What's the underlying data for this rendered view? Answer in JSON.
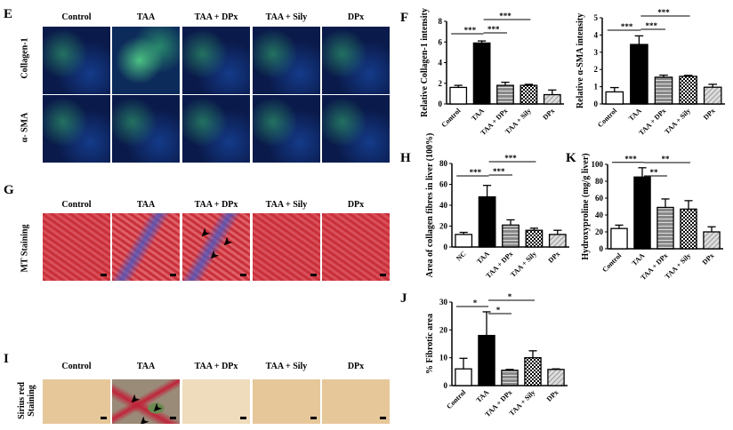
{
  "panels": {
    "E": {
      "label": "E",
      "columns": [
        "Control",
        "TAA",
        "TAA + DPx",
        "TAA + Sily",
        "DPx"
      ],
      "rows": [
        "Collagen-1",
        "α- SMA"
      ]
    },
    "G": {
      "label": "G",
      "columns": [
        "Control",
        "TAA",
        "TAA + DPx",
        "TAA + Sily",
        "DPx"
      ],
      "row": "MT Staining"
    },
    "I": {
      "label": "I",
      "columns": [
        "Control",
        "TAA",
        "TAA + DPx",
        "TAA + Sily",
        "DPx"
      ],
      "row": "Sirius red Staining"
    },
    "F": {
      "label": "F"
    },
    "H": {
      "label": "H"
    },
    "K": {
      "label": "K"
    },
    "J": {
      "label": "J"
    }
  },
  "colors": {
    "black": "#000000",
    "white": "#ffffff",
    "gray": "#888888"
  },
  "chart_data": [
    {
      "id": "F1",
      "type": "bar",
      "ylabel": "Relative Collagen-1 intensity",
      "categories": [
        "Control",
        "TAA",
        "TAA + DPx",
        "TAA + Sily",
        "DPx"
      ],
      "values": [
        1.6,
        5.9,
        1.8,
        1.8,
        0.9
      ],
      "errors": [
        0.2,
        0.2,
        0.3,
        0.1,
        0.45
      ],
      "ylim": [
        0,
        8
      ],
      "yticks": [
        0,
        2,
        4,
        6,
        8
      ],
      "significance": [
        {
          "from": 0,
          "to": 1,
          "label": "***"
        },
        {
          "from": 1,
          "to": 2,
          "label": "***"
        },
        {
          "from": 1,
          "to": 3,
          "label": "***"
        }
      ]
    },
    {
      "id": "F2",
      "type": "bar",
      "ylabel": "Relative α-SMA intensity",
      "categories": [
        "Control",
        "TAA",
        "TAA + DPx",
        "TAA + Sily",
        "DPx"
      ],
      "values": [
        0.7,
        3.45,
        1.55,
        1.6,
        0.97
      ],
      "errors": [
        0.25,
        0.5,
        0.12,
        0.06,
        0.17
      ],
      "ylim": [
        0,
        5
      ],
      "yticks": [
        0,
        1,
        2,
        3,
        4,
        5
      ],
      "significance": [
        {
          "from": 0,
          "to": 1,
          "label": "***"
        },
        {
          "from": 1,
          "to": 2,
          "label": "***"
        },
        {
          "from": 1,
          "to": 3,
          "label": "***"
        }
      ]
    },
    {
      "id": "H",
      "type": "bar",
      "ylabel": "Area of collagen fibres in liver (100%)",
      "categories": [
        "NC",
        "TAA",
        "TAA + DPx",
        "TAA + Sily",
        "DPx"
      ],
      "values": [
        12,
        48,
        21,
        16,
        12
      ],
      "errors": [
        2,
        11,
        5,
        2,
        4
      ],
      "ylim": [
        0,
        80
      ],
      "yticks": [
        0,
        20,
        40,
        60,
        80
      ],
      "significance": [
        {
          "from": 0,
          "to": 1,
          "label": "***"
        },
        {
          "from": 1,
          "to": 2,
          "label": "***"
        },
        {
          "from": 1,
          "to": 3,
          "label": "***"
        }
      ]
    },
    {
      "id": "K",
      "type": "bar",
      "ylabel": "Hydroxyproline (mg/g liver)",
      "categories": [
        "Control",
        "TAA",
        "TAA + DPx",
        "TAA + Sily",
        "DPx"
      ],
      "values": [
        24,
        85,
        49,
        47,
        20
      ],
      "errors": [
        4,
        11,
        10,
        10,
        6
      ],
      "ylim": [
        0,
        100
      ],
      "yticks": [
        0,
        20,
        40,
        60,
        80,
        100
      ],
      "significance": [
        {
          "from": 0,
          "to": 1,
          "label": "***"
        },
        {
          "from": 1,
          "to": 2,
          "label": "**"
        },
        {
          "from": 1,
          "to": 3,
          "label": "**"
        }
      ]
    },
    {
      "id": "J",
      "type": "bar",
      "ylabel": "% Fibrotic area",
      "categories": [
        "Control",
        "TAA",
        "TAA + DPx",
        "TAA + Sily",
        "DPx"
      ],
      "values": [
        6,
        18,
        5.5,
        10,
        5.8
      ],
      "errors": [
        3.8,
        8.5,
        0.3,
        2.5,
        0.2
      ],
      "ylim": [
        0,
        30
      ],
      "yticks": [
        0,
        10,
        20,
        30
      ],
      "significance": [
        {
          "from": 0,
          "to": 1,
          "label": "*"
        },
        {
          "from": 1,
          "to": 2,
          "label": "*"
        },
        {
          "from": 1,
          "to": 3,
          "label": "*"
        }
      ]
    }
  ]
}
